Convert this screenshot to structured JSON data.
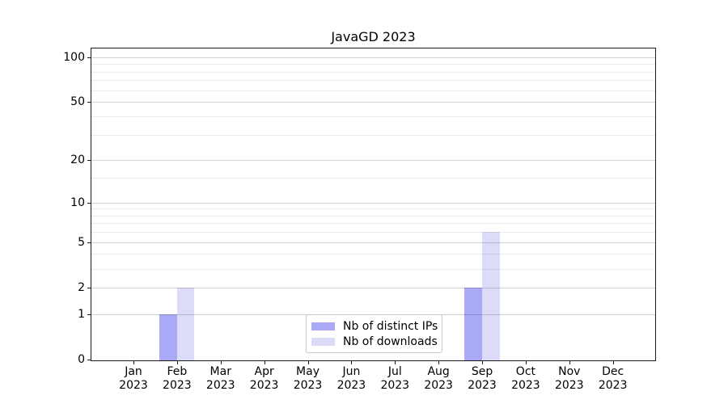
{
  "chart_data": {
    "type": "bar",
    "title": "JavaGD 2023",
    "categories": [
      "Jan",
      "Feb",
      "Mar",
      "Apr",
      "May",
      "Jun",
      "Jul",
      "Aug",
      "Sep",
      "Oct",
      "Nov",
      "Dec"
    ],
    "x_year_label": "2023",
    "series": [
      {
        "name": "Nb of distinct IPs",
        "color": "#a9a9f6",
        "values": [
          0,
          1,
          0,
          0,
          0,
          0,
          0,
          0,
          2,
          0,
          0,
          0
        ]
      },
      {
        "name": "Nb of downloads",
        "color": "#dcdcf9",
        "values": [
          0,
          2,
          0,
          0,
          0,
          0,
          0,
          0,
          6,
          0,
          0,
          0
        ]
      }
    ],
    "y_scale": "log10(1+x)",
    "y_ticks": [
      0,
      1,
      2,
      5,
      10,
      20,
      50,
      100
    ],
    "y_minor_gridlines": [
      3,
      4,
      6,
      7,
      8,
      9,
      15,
      30,
      40,
      60,
      70,
      80,
      90
    ],
    "ylim": [
      0,
      115
    ],
    "grid": true,
    "legend_position": "lower center"
  }
}
